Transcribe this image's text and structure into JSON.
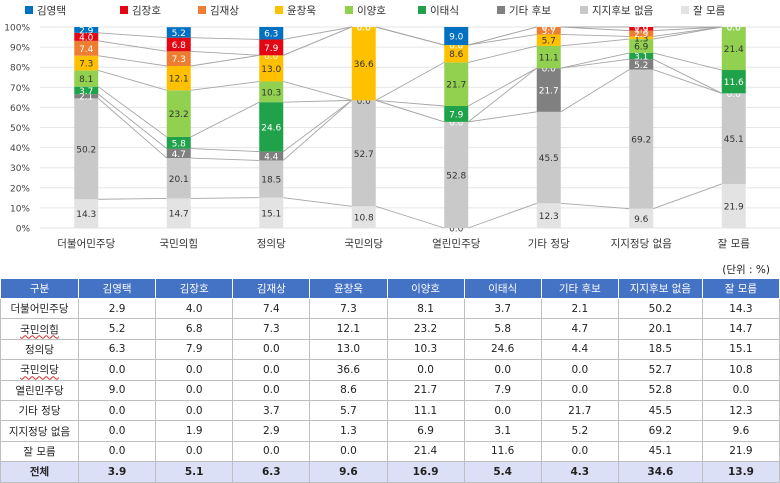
{
  "chart_data": {
    "type": "bar",
    "stacked": true,
    "normalized": true,
    "ylim": [
      0,
      100
    ],
    "yticks": [
      "0%",
      "10%",
      "20%",
      "30%",
      "40%",
      "50%",
      "60%",
      "70%",
      "80%",
      "90%",
      "100%"
    ],
    "legend_position": "top",
    "categories": [
      "더불어민주당",
      "국민의힘",
      "정의당",
      "국민의당",
      "열린민주당",
      "기타 정당",
      "지지정당 없음",
      "잘 모름"
    ],
    "series": [
      {
        "name": "잘 모름",
        "color": "#e3e3e3",
        "values": [
          14.3,
          14.7,
          15.1,
          10.8,
          0.0,
          12.3,
          9.6,
          21.9
        ]
      },
      {
        "name": "지지후보 없음",
        "color": "#c9c9c9",
        "values": [
          50.2,
          20.1,
          18.5,
          52.7,
          52.8,
          45.5,
          69.2,
          45.1
        ]
      },
      {
        "name": "기타 후보",
        "color": "#808080",
        "values": [
          2.1,
          4.7,
          4.4,
          0.0,
          0.0,
          21.7,
          5.2,
          0.0
        ]
      },
      {
        "name": "이태식",
        "color": "#1fa24a",
        "values": [
          3.7,
          5.8,
          24.6,
          0.0,
          7.9,
          0.0,
          3.1,
          11.6
        ]
      },
      {
        "name": "이양호",
        "color": "#92d050",
        "values": [
          8.1,
          23.2,
          10.3,
          0.0,
          21.7,
          11.1,
          6.9,
          21.4
        ]
      },
      {
        "name": "윤창욱",
        "color": "#ffc000",
        "values": [
          7.3,
          12.1,
          13.0,
          36.6,
          8.6,
          5.7,
          1.3,
          0.0
        ]
      },
      {
        "name": "김재상",
        "color": "#ed7d31",
        "values": [
          7.4,
          7.3,
          0.0,
          0.0,
          0.0,
          3.7,
          2.9,
          0.0
        ]
      },
      {
        "name": "김장호",
        "color": "#e30613",
        "values": [
          4.0,
          6.8,
          7.9,
          0.0,
          0.0,
          0.0,
          1.9,
          0.0
        ]
      },
      {
        "name": "김영택",
        "color": "#0070c0",
        "values": [
          2.9,
          5.2,
          6.3,
          0.0,
          9.0,
          0.0,
          0.0,
          0.0
        ]
      }
    ],
    "legend_order": [
      "김영택",
      "김장호",
      "김재상",
      "윤창욱",
      "이양호",
      "이태식",
      "기타 후보",
      "지지후보 없음",
      "잘 모름"
    ]
  },
  "table": {
    "unit": "(단위 : %)",
    "headers": [
      "구분",
      "김영택",
      "김장호",
      "김재상",
      "윤창욱",
      "이양호",
      "이태식",
      "기타 후보",
      "지지후보 없음",
      "잘 모름"
    ],
    "rows": [
      {
        "label": "더불어민주당",
        "values": [
          "2.9",
          "4.0",
          "7.4",
          "7.3",
          "8.1",
          "3.7",
          "2.1",
          "50.2",
          "14.3"
        ]
      },
      {
        "label": "국민의힘",
        "values": [
          "5.2",
          "6.8",
          "7.3",
          "12.1",
          "23.2",
          "5.8",
          "4.7",
          "20.1",
          "14.7"
        ]
      },
      {
        "label": "정의당",
        "values": [
          "6.3",
          "7.9",
          "0.0",
          "13.0",
          "10.3",
          "24.6",
          "4.4",
          "18.5",
          "15.1"
        ]
      },
      {
        "label": "국민의당",
        "values": [
          "0.0",
          "0.0",
          "0.0",
          "36.6",
          "0.0",
          "0.0",
          "0.0",
          "52.7",
          "10.8"
        ]
      },
      {
        "label": "열린민주당",
        "values": [
          "9.0",
          "0.0",
          "0.0",
          "8.6",
          "21.7",
          "7.9",
          "0.0",
          "52.8",
          "0.0"
        ]
      },
      {
        "label": "기타 정당",
        "values": [
          "0.0",
          "0.0",
          "3.7",
          "5.7",
          "11.1",
          "0.0",
          "21.7",
          "45.5",
          "12.3"
        ]
      },
      {
        "label": "지지정당 없음",
        "values": [
          "0.0",
          "1.9",
          "2.9",
          "1.3",
          "6.9",
          "3.1",
          "5.2",
          "69.2",
          "9.6"
        ]
      },
      {
        "label": "잘 모름",
        "values": [
          "0.0",
          "0.0",
          "0.0",
          "0.0",
          "21.4",
          "11.6",
          "0.0",
          "45.1",
          "21.9"
        ]
      }
    ],
    "total": {
      "label": "전체",
      "values": [
        "3.9",
        "5.1",
        "6.3",
        "9.6",
        "16.9",
        "5.4",
        "4.3",
        "34.6",
        "13.9"
      ]
    }
  }
}
